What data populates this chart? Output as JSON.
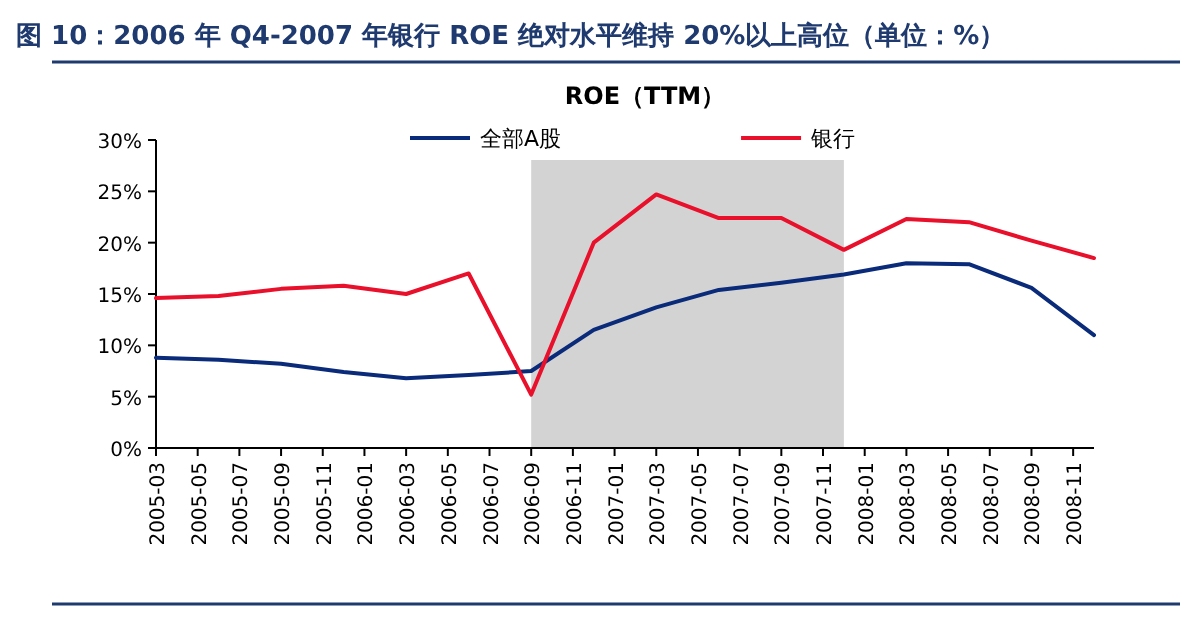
{
  "chart_data": {
    "type": "line",
    "title": "图 10：2006 年 Q4-2007 年银行 ROE 绝对水平维持 20%以上高位（单位：%）",
    "subtitle": "ROE（TTM）",
    "x": [
      "2005-03",
      "2005-06",
      "2005-09",
      "2005-12",
      "2006-03",
      "2006-06",
      "2006-09",
      "2006-12",
      "2007-03",
      "2007-06",
      "2007-09",
      "2007-12",
      "2008-03",
      "2008-06",
      "2008-09",
      "2008-12"
    ],
    "series": [
      {
        "name": "全部A股",
        "color": "#0a2a7a",
        "values": [
          8.8,
          8.6,
          8.2,
          7.4,
          6.8,
          7.1,
          7.5,
          11.5,
          13.7,
          15.4,
          16.1,
          16.9,
          18.0,
          17.9,
          15.6,
          11.0
        ]
      },
      {
        "name": "银行",
        "color": "#e8102a",
        "values": [
          14.6,
          14.8,
          15.5,
          15.8,
          15.0,
          17.0,
          5.2,
          20.0,
          24.7,
          22.4,
          22.4,
          19.3,
          22.3,
          22.0,
          20.2,
          18.5
        ]
      }
    ],
    "xlim": [
      "2005-03",
      "2008-12"
    ],
    "xticks": [
      "2005-03",
      "2005-05",
      "2005-07",
      "2005-09",
      "2005-11",
      "2006-01",
      "2006-03",
      "2006-05",
      "2006-07",
      "2006-09",
      "2006-11",
      "2007-01",
      "2007-03",
      "2007-05",
      "2007-07",
      "2007-09",
      "2007-11",
      "2008-01",
      "2008-03",
      "2008-05",
      "2008-07",
      "2008-09",
      "2008-11"
    ],
    "ylim": [
      0,
      30
    ],
    "yticks": [
      {
        "value": 0,
        "label": "0%"
      },
      {
        "value": 5,
        "label": "5%"
      },
      {
        "value": 10,
        "label": "10%"
      },
      {
        "value": 15,
        "label": "15%"
      },
      {
        "value": 20,
        "label": "20%"
      },
      {
        "value": 25,
        "label": "25%"
      },
      {
        "value": 30,
        "label": "30%"
      }
    ],
    "bands": [
      {
        "axis": "x",
        "from": "2006-09",
        "to": "2007-12",
        "color": "#d3d3d3"
      }
    ],
    "legend": "top",
    "grid": false,
    "marker": "none",
    "line_style": "solid"
  }
}
